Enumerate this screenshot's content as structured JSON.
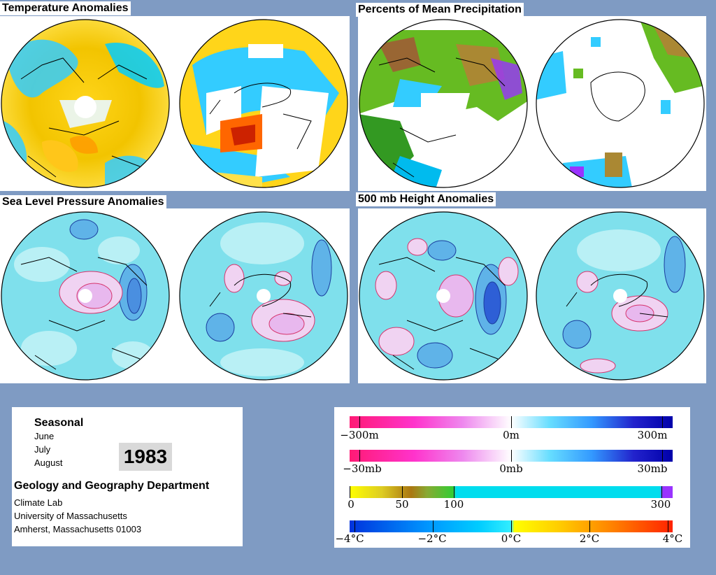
{
  "panels": {
    "temperature": {
      "title": "Temperature Anomalies"
    },
    "precipitation": {
      "title": "Percents of Mean Precipitation"
    },
    "slp": {
      "title": "Sea Level Pressure Anomalies"
    },
    "height": {
      "title": "500 mb Height Anomalies"
    }
  },
  "info": {
    "season": "Seasonal",
    "months": [
      "June",
      "July",
      "August"
    ],
    "year": "1983",
    "department": "Geology and Geography Department",
    "lab": "Climate Lab",
    "university": "University of Massachusetts",
    "city": "Amherst, Massachusetts 01003"
  },
  "legends": {
    "height": {
      "left": "−300m",
      "mid": "0m",
      "right": "300m"
    },
    "pressure": {
      "left": "−30mb",
      "mid": "0mb",
      "right": "30mb"
    },
    "precip": {
      "a": "0",
      "b": "50",
      "c": "100",
      "d": "300"
    },
    "temp": {
      "a": "−4°C",
      "b": "−2°C",
      "c": "0°C",
      "d": "2°C",
      "e": "4°C"
    }
  },
  "colors": {
    "background": "#7f9bc3",
    "negative_anomaly": "#ff1493",
    "positive_anomaly": "#0000cd",
    "warm": "#ff3300",
    "cool": "#1e90ff",
    "dry": "#ffff00",
    "wet": "#9933ff"
  }
}
